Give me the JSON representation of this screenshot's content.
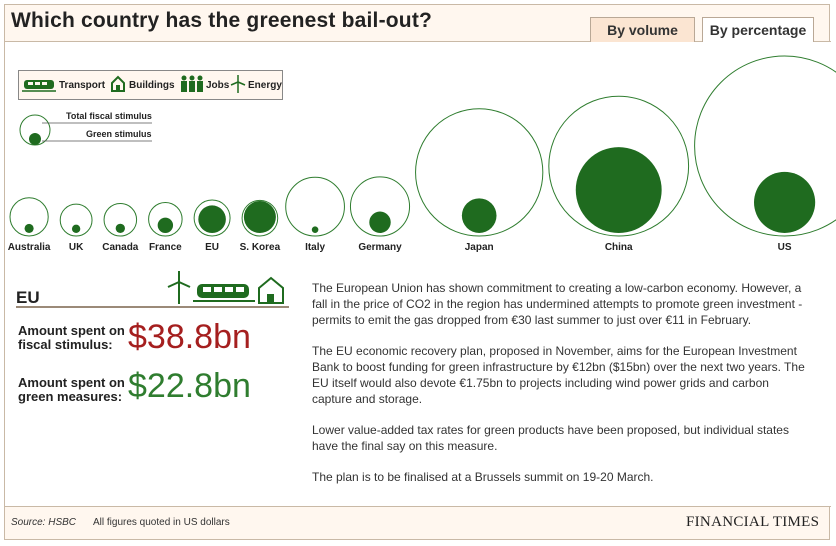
{
  "title": "Which country has the greenest bail-out?",
  "tabs": [
    {
      "label": "By volume",
      "active": true
    },
    {
      "label": "By percentage",
      "active": false
    }
  ],
  "legend": {
    "items": [
      {
        "label": "Transport",
        "icon": "train-icon"
      },
      {
        "label": "Buildings",
        "icon": "house-icon"
      },
      {
        "label": "Jobs",
        "icon": "people-icon"
      },
      {
        "label": "Energy",
        "icon": "wind-turbine-icon"
      }
    ],
    "size_key": {
      "outer_label": "Total fiscal stimulus",
      "inner_label": "Green stimulus"
    }
  },
  "colors": {
    "green": "#1f6b1f",
    "fiscal_outline": "#2f7d2f",
    "fiscal_value": "#a51f1f",
    "green_value": "#2f7d2f"
  },
  "chart_data": {
    "type": "bubble",
    "encoding": "circle area proportional to amount (US$ bn)",
    "categories": [
      "Australia",
      "UK",
      "Canada",
      "France",
      "EU",
      "S. Korea",
      "Italy",
      "Germany",
      "Japan",
      "China",
      "US"
    ],
    "series": [
      {
        "name": "Total fiscal stimulus",
        "values": [
          43.8,
          30.4,
          31.8,
          33.7,
          38.8,
          38.1,
          103.5,
          104.8,
          485.9,
          586.1,
          972.0
        ]
      },
      {
        "name": "Green stimulus",
        "values": [
          2.5,
          2.1,
          2.6,
          7.1,
          22.8,
          30.7,
          1.3,
          13.8,
          36.0,
          221.3,
          112.3
        ]
      }
    ]
  },
  "detail": {
    "region": "EU",
    "fiscal_label": "Amount spent on fiscal stimulus:",
    "fiscal_value": "$38.8bn",
    "green_label": "Amount spent on green measures:",
    "green_value": "$22.8bn",
    "paragraphs": [
      "The European Union has shown commitment to creating a low-carbon economy. However, a fall in the price of CO2 in the region has undermined attempts to promote green investment - permits to emit the gas dropped from €30 last summer to just over €11 in February.",
      "The EU economic recovery plan, proposed in November, aims for the European Investment Bank to boost funding for green infrastructure by €12bn ($15bn) over the next two years. The EU itself would also devote €1.75bn to projects including wind power grids and carbon capture and storage.",
      "Lower value-added tax rates for green products have been proposed, but individual states have the final say on this measure.",
      "The plan is to be finalised at a Brussels summit on 19-20 March."
    ]
  },
  "footer": {
    "source": "Source: HSBC",
    "note": "All figures quoted in US dollars",
    "brand": "FINANCIAL TIMES"
  }
}
